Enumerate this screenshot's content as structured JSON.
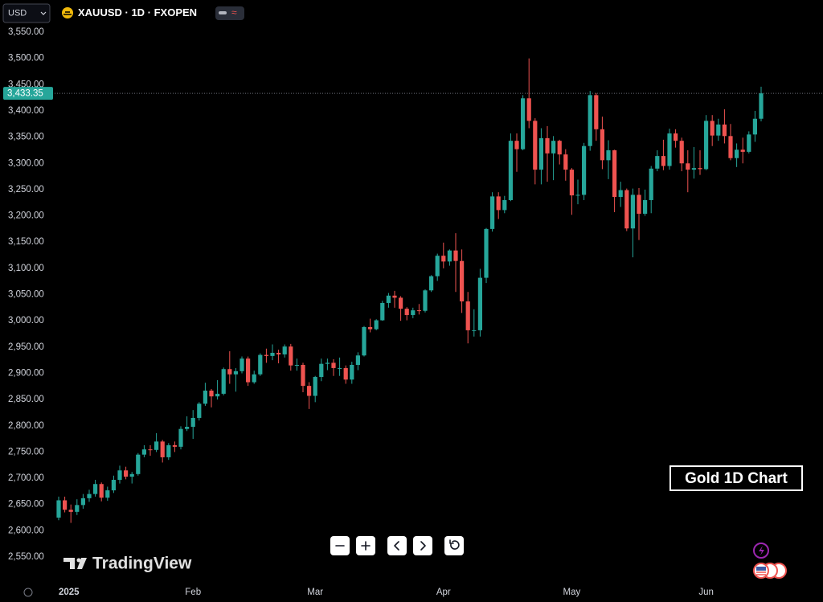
{
  "chart_data": {
    "type": "candlestick",
    "symbol": "USD",
    "title": "XAUUSD · 1D · FXOPEN",
    "watermark": "TradingView",
    "annotation": "Gold 1D Chart",
    "up_color": "#26a69a",
    "down_color": "#ef5350",
    "last_price": {
      "value": 3433.35,
      "label": "3,433.35"
    },
    "ylim": [
      2550,
      3550
    ],
    "yticks": [
      {
        "value": 2550,
        "label": "2,550.00"
      },
      {
        "value": 2600,
        "label": "2,600.00"
      },
      {
        "value": 2650,
        "label": "2,650.00"
      },
      {
        "value": 2700,
        "label": "2,700.00"
      },
      {
        "value": 2750,
        "label": "2,750.00"
      },
      {
        "value": 2800,
        "label": "2,800.00"
      },
      {
        "value": 2850,
        "label": "2,850.00"
      },
      {
        "value": 2900,
        "label": "2,900.00"
      },
      {
        "value": 2950,
        "label": "2,950.00"
      },
      {
        "value": 3000,
        "label": "3,000.00"
      },
      {
        "value": 3050,
        "label": "3,050.00"
      },
      {
        "value": 3100,
        "label": "3,100.00"
      },
      {
        "value": 3150,
        "label": "3,150.00"
      },
      {
        "value": 3200,
        "label": "3,200.00"
      },
      {
        "value": 3250,
        "label": "3,250.00"
      },
      {
        "value": 3300,
        "label": "3,300.00"
      },
      {
        "value": 3350,
        "label": "3,350.00"
      },
      {
        "value": 3400,
        "label": "3,400.00"
      },
      {
        "value": 3450,
        "label": "3,450.00"
      },
      {
        "value": 3500,
        "label": "3,500.00"
      },
      {
        "value": 3550,
        "label": "3,550.00"
      }
    ],
    "categories": [
      "2025",
      null,
      null,
      null,
      null,
      null,
      null,
      null,
      null,
      null,
      null,
      null,
      null,
      null,
      null,
      null,
      null,
      null,
      null,
      null,
      null,
      null,
      "Feb",
      null,
      null,
      null,
      null,
      null,
      null,
      null,
      null,
      null,
      null,
      null,
      null,
      null,
      null,
      null,
      null,
      null,
      null,
      null,
      "Mar",
      null,
      null,
      null,
      null,
      null,
      null,
      null,
      null,
      null,
      null,
      null,
      null,
      null,
      null,
      null,
      null,
      null,
      null,
      null,
      null,
      "Apr",
      null,
      null,
      null,
      null,
      null,
      null,
      null,
      null,
      null,
      null,
      null,
      null,
      null,
      null,
      null,
      null,
      null,
      null,
      null,
      null,
      "May",
      null,
      null,
      null,
      null,
      null,
      null,
      null,
      null,
      null,
      null,
      null,
      null,
      null,
      null,
      null,
      null,
      null,
      null,
      null,
      null,
      null,
      "Jun",
      null,
      null,
      null,
      null,
      null,
      null,
      null,
      null,
      null
    ],
    "open": [
      2625,
      2658,
      2640,
      2636,
      2649,
      2662,
      2670,
      2689,
      2663,
      2677,
      2697,
      2715,
      2703,
      2708,
      2745,
      2755,
      2754,
      2770,
      2740,
      2763,
      2760,
      2794,
      2798,
      2815,
      2842,
      2867,
      2856,
      2861,
      2908,
      2898,
      2904,
      2928,
      2883,
      2898,
      2935,
      2933,
      2939,
      2936,
      2951,
      2915,
      2916,
      2876,
      2857,
      2893,
      2918,
      2920,
      2910,
      2910,
      2888,
      2916,
      2934,
      2988,
      2984,
      3001,
      3034,
      3048,
      3044,
      3023,
      3011,
      3020,
      3019,
      3058,
      3085,
      3124,
      3113,
      3134,
      3114,
      3037,
      2982,
      2982,
      3082,
      3175,
      3237,
      3211,
      3230,
      3343,
      3327,
      3424,
      3381,
      3288,
      3348,
      3319,
      3343,
      3317,
      3288,
      3239,
      3240,
      3333,
      3430,
      3365,
      3306,
      3325,
      3236,
      3249,
      3176,
      3240,
      3204,
      3230,
      3290,
      3314,
      3295,
      3357,
      3343,
      3300,
      3288,
      3291,
      3289,
      3381,
      3353,
      3374,
      3352,
      3310,
      3326,
      3322,
      3355,
      3385
    ],
    "high": [
      2665,
      2665,
      2650,
      2660,
      2670,
      2678,
      2697,
      2692,
      2684,
      2705,
      2724,
      2722,
      2712,
      2748,
      2763,
      2763,
      2786,
      2773,
      2767,
      2770,
      2799,
      2818,
      2830,
      2845,
      2882,
      2870,
      2887,
      2911,
      2942,
      2910,
      2932,
      2932,
      2905,
      2938,
      2947,
      2955,
      2945,
      2955,
      2956,
      2928,
      2920,
      2883,
      2895,
      2928,
      2928,
      2927,
      2930,
      2915,
      2922,
      2940,
      2990,
      3004,
      3003,
      3038,
      3053,
      3057,
      3047,
      3026,
      3025,
      3032,
      3060,
      3087,
      3128,
      3149,
      3136,
      3167,
      3136,
      3055,
      3022,
      3099,
      3177,
      3245,
      3245,
      3238,
      3357,
      3357,
      3430,
      3500,
      3386,
      3367,
      3371,
      3352,
      3345,
      3327,
      3291,
      3269,
      3339,
      3438,
      3434,
      3389,
      3344,
      3326,
      3265,
      3252,
      3252,
      3253,
      3250,
      3295,
      3325,
      3345,
      3366,
      3365,
      3349,
      3325,
      3331,
      3325,
      3392,
      3392,
      3385,
      3403,
      3375,
      3338,
      3349,
      3361,
      3400,
      3446
    ],
    "low": [
      2620,
      2635,
      2615,
      2630,
      2642,
      2655,
      2665,
      2656,
      2657,
      2672,
      2690,
      2698,
      2690,
      2705,
      2740,
      2743,
      2750,
      2730,
      2735,
      2750,
      2755,
      2790,
      2775,
      2810,
      2838,
      2835,
      2850,
      2858,
      2880,
      2865,
      2900,
      2876,
      2880,
      2895,
      2920,
      2925,
      2919,
      2930,
      2905,
      2905,
      2864,
      2832,
      2845,
      2885,
      2906,
      2895,
      2895,
      2880,
      2880,
      2906,
      2932,
      2978,
      2982,
      3000,
      3025,
      3025,
      3000,
      3001,
      3005,
      3012,
      3016,
      3055,
      3076,
      3100,
      3105,
      3055,
      3015,
      2957,
      2970,
      2970,
      3072,
      3170,
      3194,
      3205,
      3228,
      3284,
      3325,
      3367,
      3260,
      3260,
      3265,
      3268,
      3298,
      3267,
      3202,
      3222,
      3230,
      3324,
      3343,
      3289,
      3270,
      3207,
      3217,
      3171,
      3121,
      3154,
      3200,
      3205,
      3285,
      3287,
      3288,
      3330,
      3285,
      3245,
      3271,
      3278,
      3287,
      3333,
      3343,
      3338,
      3306,
      3293,
      3300,
      3319,
      3341,
      3380
    ],
    "close": [
      2658,
      2640,
      2636,
      2649,
      2662,
      2670,
      2689,
      2663,
      2677,
      2697,
      2715,
      2703,
      2708,
      2745,
      2755,
      2754,
      2770,
      2740,
      2763,
      2760,
      2794,
      2798,
      2815,
      2842,
      2867,
      2856,
      2861,
      2908,
      2898,
      2904,
      2928,
      2883,
      2898,
      2935,
      2933,
      2939,
      2936,
      2951,
      2915,
      2916,
      2876,
      2857,
      2893,
      2918,
      2920,
      2910,
      2910,
      2888,
      2916,
      2934,
      2988,
      2984,
      3001,
      3034,
      3048,
      3044,
      3023,
      3011,
      3020,
      3019,
      3058,
      3085,
      3124,
      3113,
      3134,
      3114,
      3037,
      2982,
      2982,
      3082,
      3175,
      3237,
      3211,
      3230,
      3343,
      3327,
      3424,
      3381,
      3288,
      3348,
      3319,
      3343,
      3317,
      3288,
      3239,
      3240,
      3333,
      3430,
      3365,
      3306,
      3325,
      3236,
      3249,
      3176,
      3240,
      3204,
      3230,
      3290,
      3314,
      3295,
      3357,
      3343,
      3300,
      3288,
      3291,
      3289,
      3381,
      3353,
      3374,
      3352,
      3310,
      3326,
      3322,
      3355,
      3385,
      3433.35
    ]
  }
}
